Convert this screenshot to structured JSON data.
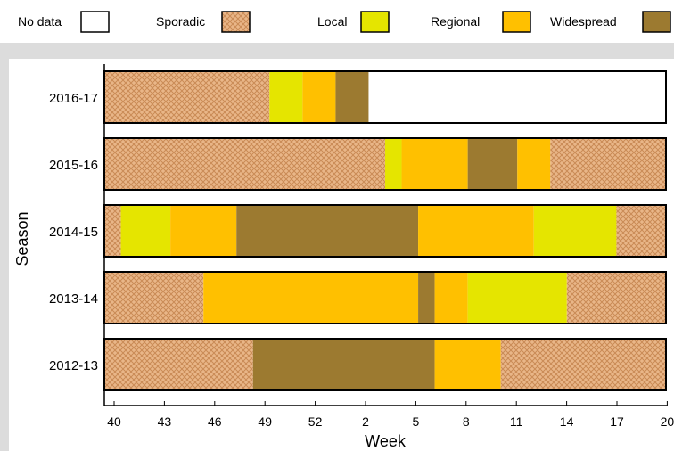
{
  "chart_data": {
    "type": "bar",
    "orientation": "horizontal",
    "xlabel": "Week",
    "ylabel": "Season",
    "x_ticks": [
      "40",
      "43",
      "46",
      "49",
      "52",
      "2",
      "5",
      "8",
      "11",
      "14",
      "17",
      "20"
    ],
    "x_range_weeks": [
      40,
      20
    ],
    "legend": {
      "placement": "top",
      "entries": [
        {
          "key": "nodata",
          "label": "No data",
          "color": "#ffffff"
        },
        {
          "key": "sporadic",
          "label": "Sporadic",
          "color": "#e3ab79"
        },
        {
          "key": "local",
          "label": "Local",
          "color": "#e5e500"
        },
        {
          "key": "regional",
          "label": "Regional",
          "color": "#ffc000"
        },
        {
          "key": "widespread",
          "label": "Widespread",
          "color": "#9c7a30"
        }
      ]
    },
    "seasons": [
      {
        "label": "2016-17",
        "segments": [
          {
            "level": "sporadic",
            "from": 40,
            "to": 50
          },
          {
            "level": "local",
            "from": 50,
            "to": 52
          },
          {
            "level": "regional",
            "from": 52,
            "to": 54
          },
          {
            "level": "widespread",
            "from": 54,
            "to": 56
          },
          {
            "level": "nodata",
            "from": 56,
            "to": 74
          }
        ]
      },
      {
        "label": "2015-16",
        "segments": [
          {
            "level": "sporadic",
            "from": 40,
            "to": 57
          },
          {
            "level": "local",
            "from": 57,
            "to": 58
          },
          {
            "level": "regional",
            "from": 58,
            "to": 62
          },
          {
            "level": "widespread",
            "from": 62,
            "to": 65
          },
          {
            "level": "regional",
            "from": 65,
            "to": 67
          },
          {
            "level": "sporadic",
            "from": 67,
            "to": 74
          }
        ]
      },
      {
        "label": "2014-15",
        "segments": [
          {
            "level": "sporadic",
            "from": 40,
            "to": 41
          },
          {
            "level": "local",
            "from": 41,
            "to": 44
          },
          {
            "level": "regional",
            "from": 44,
            "to": 48
          },
          {
            "level": "widespread",
            "from": 48,
            "to": 59
          },
          {
            "level": "regional",
            "from": 59,
            "to": 66
          },
          {
            "level": "local",
            "from": 66,
            "to": 71
          },
          {
            "level": "sporadic",
            "from": 71,
            "to": 74
          }
        ]
      },
      {
        "label": "2013-14",
        "segments": [
          {
            "level": "sporadic",
            "from": 40,
            "to": 46
          },
          {
            "level": "regional",
            "from": 46,
            "to": 59
          },
          {
            "level": "widespread",
            "from": 59,
            "to": 60
          },
          {
            "level": "regional",
            "from": 60,
            "to": 62
          },
          {
            "level": "local",
            "from": 62,
            "to": 68
          },
          {
            "level": "sporadic",
            "from": 68,
            "to": 74
          }
        ]
      },
      {
        "label": "2012-13",
        "segments": [
          {
            "level": "sporadic",
            "from": 40,
            "to": 49
          },
          {
            "level": "widespread",
            "from": 49,
            "to": 60
          },
          {
            "level": "regional",
            "from": 60,
            "to": 64
          },
          {
            "level": "sporadic",
            "from": 64,
            "to": 74
          }
        ]
      }
    ]
  }
}
